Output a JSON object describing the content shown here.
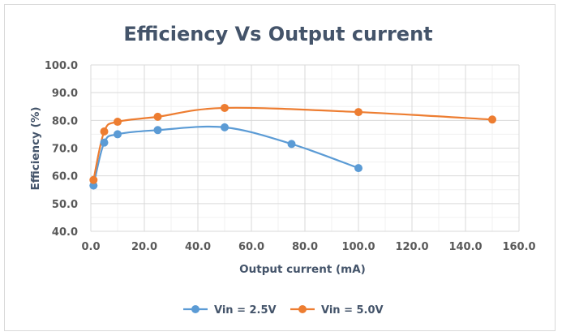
{
  "chart_data": {
    "type": "line",
    "title": "Efficiency Vs Output current",
    "xlabel": "Output current (mA)",
    "ylabel": "Efficiency (%)",
    "xlim": [
      0,
      160
    ],
    "ylim": [
      40,
      100
    ],
    "x_ticks": [
      "0.0",
      "20.0",
      "40.0",
      "60.0",
      "80.0",
      "100.0",
      "120.0",
      "140.0",
      "160.0"
    ],
    "y_ticks": [
      "40.0",
      "50.0",
      "60.0",
      "70.0",
      "80.0",
      "90.0",
      "100.0"
    ],
    "grid": true,
    "legend_position": "bottom",
    "series": [
      {
        "name": "Vin = 2.5V",
        "color": "#5b9bd5",
        "x": [
          1,
          5,
          10,
          25,
          50,
          75,
          100
        ],
        "y": [
          56.5,
          72,
          75,
          76.5,
          77.5,
          71.5,
          62.8
        ]
      },
      {
        "name": "Vin = 5.0V",
        "color": "#ed7d31",
        "x": [
          1,
          5,
          10,
          25,
          50,
          100,
          150
        ],
        "y": [
          58.5,
          76,
          79.5,
          81.3,
          84.5,
          83,
          80.3
        ]
      }
    ]
  }
}
